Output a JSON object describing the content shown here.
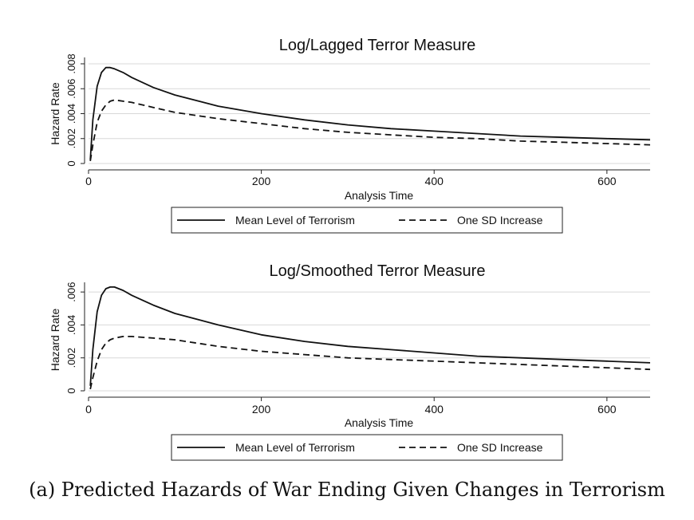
{
  "caption": "(a) Predicted Hazards of War Ending Given Changes in Terrorism",
  "colors": {
    "line": "#111111",
    "grid": "#d8d8d8",
    "axis": "#222222"
  },
  "chart_data": [
    {
      "type": "line",
      "title": "Log/Lagged Terror Measure",
      "xlabel": "Analysis Time",
      "ylabel": "Hazard Rate",
      "xlim": [
        0,
        650
      ],
      "ylim": [
        0,
        0.008
      ],
      "xticks": [
        0,
        200,
        400,
        600
      ],
      "xtick_labels": [
        "0",
        "200",
        "400",
        "600"
      ],
      "yticks": [
        0,
        0.002,
        0.004,
        0.006,
        0.008
      ],
      "ytick_labels": [
        "0",
        ".002",
        ".004",
        ".006",
        ".008"
      ],
      "grid": true,
      "legend": "bottom",
      "series": [
        {
          "name": "Mean Level of Terrorism",
          "style": "solid",
          "x": [
            2,
            5,
            10,
            15,
            20,
            25,
            30,
            40,
            50,
            75,
            100,
            150,
            200,
            250,
            300,
            350,
            400,
            450,
            500,
            550,
            600,
            650
          ],
          "y": [
            0.0003,
            0.0035,
            0.0062,
            0.0073,
            0.0077,
            0.0077,
            0.0076,
            0.0073,
            0.0069,
            0.0061,
            0.0055,
            0.0046,
            0.004,
            0.0035,
            0.0031,
            0.0028,
            0.0026,
            0.0024,
            0.0022,
            0.0021,
            0.002,
            0.0019
          ]
        },
        {
          "name": "One SD Increase",
          "style": "dashed",
          "x": [
            2,
            5,
            10,
            15,
            20,
            25,
            30,
            40,
            50,
            75,
            100,
            150,
            200,
            250,
            300,
            350,
            400,
            450,
            500,
            550,
            600,
            650
          ],
          "y": [
            0.0002,
            0.0015,
            0.0033,
            0.0042,
            0.0047,
            0.005,
            0.0051,
            0.005,
            0.0049,
            0.0045,
            0.0041,
            0.0036,
            0.0032,
            0.0028,
            0.0025,
            0.0023,
            0.0021,
            0.002,
            0.0018,
            0.0017,
            0.0016,
            0.0015
          ]
        }
      ]
    },
    {
      "type": "line",
      "title": "Log/Smoothed Terror Measure",
      "xlabel": "Analysis Time",
      "ylabel": "Hazard Rate",
      "xlim": [
        0,
        650
      ],
      "ylim": [
        0,
        0.0062
      ],
      "xticks": [
        0,
        200,
        400,
        600
      ],
      "xtick_labels": [
        "0",
        "200",
        "400",
        "600"
      ],
      "yticks": [
        0,
        0.002,
        0.004,
        0.006
      ],
      "ytick_labels": [
        "0",
        ".002",
        ".004",
        ".006"
      ],
      "grid": true,
      "legend": "bottom",
      "series": [
        {
          "name": "Mean Level of Terrorism",
          "style": "solid",
          "x": [
            2,
            5,
            10,
            15,
            20,
            25,
            30,
            40,
            50,
            75,
            100,
            150,
            200,
            250,
            300,
            350,
            400,
            450,
            500,
            550,
            600,
            650
          ],
          "y": [
            0.0003,
            0.0025,
            0.0048,
            0.0058,
            0.0062,
            0.0063,
            0.0063,
            0.0061,
            0.0058,
            0.0052,
            0.0047,
            0.004,
            0.0034,
            0.003,
            0.0027,
            0.0025,
            0.0023,
            0.0021,
            0.002,
            0.0019,
            0.0018,
            0.0017
          ]
        },
        {
          "name": "One SD Increase",
          "style": "dashed",
          "x": [
            2,
            5,
            10,
            15,
            20,
            25,
            30,
            40,
            50,
            75,
            100,
            150,
            200,
            250,
            300,
            350,
            400,
            450,
            500,
            550,
            600,
            650
          ],
          "y": [
            0.0001,
            0.0008,
            0.0018,
            0.0025,
            0.0029,
            0.0031,
            0.0032,
            0.0033,
            0.0033,
            0.0032,
            0.0031,
            0.0027,
            0.0024,
            0.0022,
            0.002,
            0.0019,
            0.0018,
            0.0017,
            0.0016,
            0.0015,
            0.0014,
            0.0013
          ]
        }
      ]
    }
  ]
}
